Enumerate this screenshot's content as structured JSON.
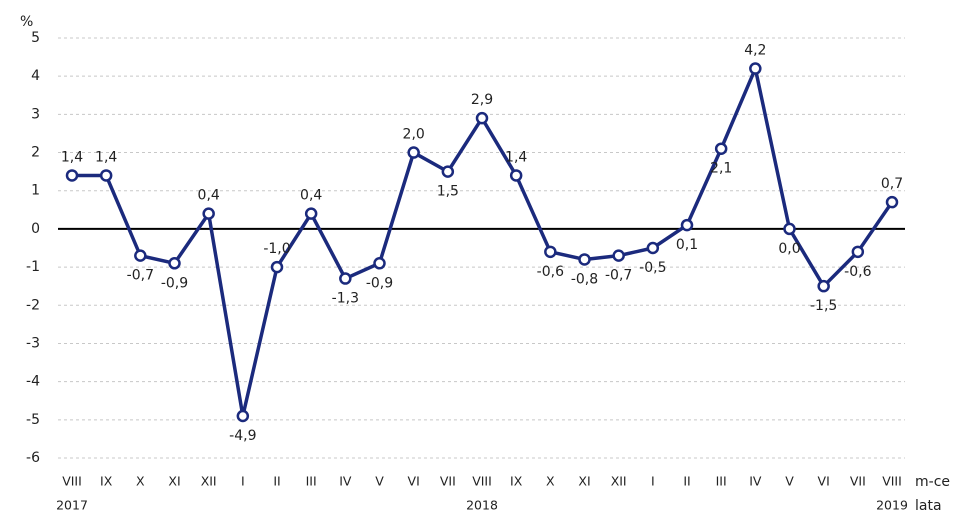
{
  "chart_data": {
    "type": "line",
    "y_unit": "%",
    "x_unit_month": "m-ce",
    "x_unit_year": "lata",
    "categories": [
      "VIII",
      "IX",
      "X",
      "XI",
      "XII",
      "I",
      "II",
      "III",
      "IV",
      "V",
      "VI",
      "VII",
      "VIII",
      "IX",
      "X",
      "XI",
      "XII",
      "I",
      "II",
      "III",
      "IV",
      "V",
      "VI",
      "VII",
      "VIII"
    ],
    "year_labels": [
      "2017",
      null,
      null,
      null,
      null,
      null,
      null,
      null,
      null,
      null,
      null,
      null,
      "2018",
      null,
      null,
      null,
      null,
      null,
      null,
      null,
      null,
      null,
      null,
      null,
      "2019"
    ],
    "series": [
      {
        "color": "#1b2a7d",
        "values": [
          1.4,
          1.4,
          -0.7,
          -0.9,
          0.4,
          -4.9,
          -1.0,
          0.4,
          -1.3,
          -0.9,
          2.0,
          1.5,
          2.9,
          1.4,
          -0.6,
          -0.8,
          -0.7,
          -0.5,
          0.1,
          2.1,
          4.2,
          0.0,
          -1.5,
          -0.6,
          0.7
        ],
        "value_labels": [
          "1,4",
          "1,4",
          "-0,7",
          "-0,9",
          "0,4",
          "-4,9",
          "-1,0",
          "0,4",
          "-1,3",
          "-0,9",
          "2,0",
          "1,5",
          "2,9",
          "1,4",
          "-0,6",
          "-0,8",
          "-0,7",
          "-0,5",
          "0,1",
          "2,1",
          "4,2",
          "0,0",
          "-1,5",
          "-0,6",
          "0,7"
        ]
      }
    ],
    "ylim": [
      -6,
      5
    ],
    "yticks": [
      -6,
      -5,
      -4,
      -3,
      -2,
      -1,
      0,
      1,
      2,
      3,
      4,
      5
    ],
    "grid": true
  }
}
